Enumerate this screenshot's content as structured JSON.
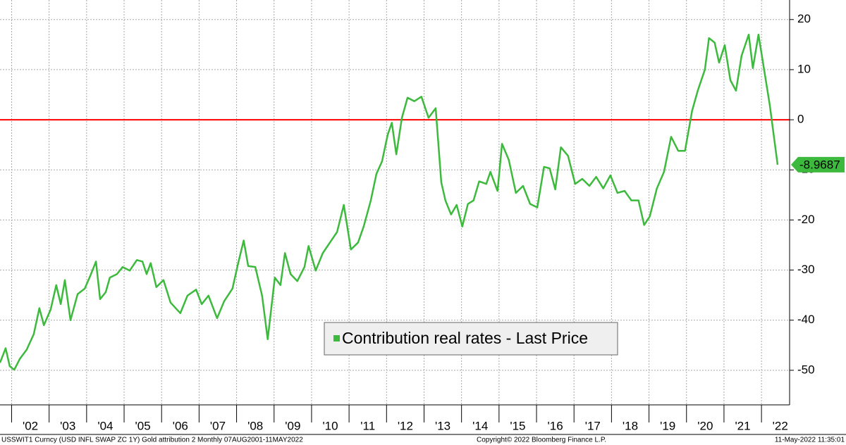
{
  "chart_data": {
    "type": "line",
    "x": [
      2001.69,
      2001.84,
      2001.95,
      2002.07,
      2002.22,
      2002.4,
      2002.59,
      2002.74,
      2002.86,
      2003.04,
      2003.19,
      2003.31,
      2003.42,
      2003.57,
      2003.76,
      2003.95,
      2004.1,
      2004.25,
      2004.36,
      2004.51,
      2004.62,
      2004.81,
      2004.96,
      2005.15,
      2005.34,
      2005.49,
      2005.6,
      2005.71,
      2005.86,
      2006.05,
      2006.24,
      2006.5,
      2006.69,
      2006.92,
      2007.07,
      2007.25,
      2007.48,
      2007.67,
      2007.89,
      2008.04,
      2008.19,
      2008.31,
      2008.5,
      2008.68,
      2008.83,
      2009.02,
      2009.17,
      2009.29,
      2009.44,
      2009.62,
      2009.81,
      2009.92,
      2010.11,
      2010.3,
      2010.49,
      2010.68,
      2010.86,
      2011.05,
      2011.24,
      2011.39,
      2011.58,
      2011.73,
      2011.88,
      2012.03,
      2012.14,
      2012.26,
      2012.41,
      2012.56,
      2012.74,
      2012.93,
      2013.12,
      2013.31,
      2013.46,
      2013.57,
      2013.72,
      2013.87,
      2014.02,
      2014.17,
      2014.32,
      2014.47,
      2014.66,
      2014.77,
      2014.96,
      2015.08,
      2015.26,
      2015.45,
      2015.64,
      2015.83,
      2016.02,
      2016.2,
      2016.35,
      2016.5,
      2016.65,
      2016.84,
      2017.03,
      2017.22,
      2017.41,
      2017.59,
      2017.78,
      2017.97,
      2018.16,
      2018.35,
      2018.53,
      2018.72,
      2018.87,
      2019.02,
      2019.21,
      2019.4,
      2019.59,
      2019.78,
      2019.96,
      2020.15,
      2020.3,
      2020.49,
      2020.6,
      2020.75,
      2020.87,
      2021.02,
      2021.17,
      2021.32,
      2021.47,
      2021.66,
      2021.77,
      2021.92,
      2022.07,
      2022.22,
      2022.43
    ],
    "series": [
      {
        "name": "Contribution real rates - Last Price",
        "color": "#3dba3d",
        "values": [
          -48.5,
          -45.6,
          -49.2,
          -49.9,
          -47.7,
          -45.9,
          -42.8,
          -37.6,
          -41,
          -37.9,
          -33,
          -36.8,
          -32,
          -40,
          -34.8,
          -33.7,
          -31.1,
          -28.3,
          -35.8,
          -34.4,
          -31.5,
          -30.8,
          -29.4,
          -30.1,
          -28,
          -28.3,
          -30.8,
          -28.6,
          -33.4,
          -32,
          -36.5,
          -38.6,
          -35.1,
          -33.9,
          -36.8,
          -35.1,
          -39.6,
          -36.2,
          -33.7,
          -28.7,
          -24.1,
          -29.2,
          -29.4,
          -35.1,
          -43.8,
          -31.5,
          -33,
          -26.6,
          -30.8,
          -32.2,
          -29.4,
          -25.2,
          -30.1,
          -26.6,
          -24.5,
          -22.4,
          -17,
          -25.9,
          -24.5,
          -21.3,
          -16.1,
          -10.8,
          -8.3,
          -3,
          -0.6,
          -6.9,
          0.4,
          4.4,
          3.7,
          4.6,
          0.4,
          2.3,
          -12.5,
          -16.1,
          -18.9,
          -17,
          -21.3,
          -16.8,
          -16.1,
          -12.3,
          -12.8,
          -10.4,
          -14.2,
          -4.8,
          -8,
          -14.6,
          -13.2,
          -16.8,
          -17.5,
          -9.4,
          -9.7,
          -13.9,
          -5.5,
          -7.2,
          -12.8,
          -11.8,
          -13.2,
          -11.4,
          -13.7,
          -11.1,
          -14.6,
          -14.2,
          -16.1,
          -16.1,
          -21,
          -19.3,
          -13.7,
          -10.4,
          -3.4,
          -6.2,
          -6.2,
          1.8,
          5.8,
          10,
          16.3,
          15.4,
          11.4,
          14.9,
          7.9,
          5.8,
          12.8,
          17,
          10.3,
          17,
          10,
          3,
          -8.9687
        ]
      }
    ],
    "xlim": [
      2001.69,
      2022.75
    ],
    "ylim": [
      -56.9,
      23.9
    ],
    "xticks": [
      {
        "value": 2002.5,
        "label": "'02"
      },
      {
        "value": 2003.5,
        "label": "'03"
      },
      {
        "value": 2004.5,
        "label": "'04"
      },
      {
        "value": 2005.5,
        "label": "'05"
      },
      {
        "value": 2006.5,
        "label": "'06"
      },
      {
        "value": 2007.5,
        "label": "'07"
      },
      {
        "value": 2008.5,
        "label": "'08"
      },
      {
        "value": 2009.5,
        "label": "'09"
      },
      {
        "value": 2010.5,
        "label": "'10"
      },
      {
        "value": 2011.5,
        "label": "'11"
      },
      {
        "value": 2012.5,
        "label": "'12"
      },
      {
        "value": 2013.5,
        "label": "'13"
      },
      {
        "value": 2014.5,
        "label": "'14"
      },
      {
        "value": 2015.5,
        "label": "'15"
      },
      {
        "value": 2016.5,
        "label": "'16"
      },
      {
        "value": 2017.5,
        "label": "'17"
      },
      {
        "value": 2018.5,
        "label": "'18"
      },
      {
        "value": 2019.5,
        "label": "'19"
      },
      {
        "value": 2020.5,
        "label": "'20"
      },
      {
        "value": 2021.5,
        "label": "'21"
      },
      {
        "value": 2022.5,
        "label": "'22"
      }
    ],
    "xgrid": [
      2002,
      2003,
      2004,
      2005,
      2006,
      2007,
      2008,
      2009,
      2010,
      2011,
      2012,
      2013,
      2014,
      2015,
      2016,
      2017,
      2018,
      2019,
      2020,
      2021,
      2022
    ],
    "yticks": [
      20,
      10,
      0,
      -10,
      -20,
      -30,
      -40,
      -50
    ],
    "grid": true,
    "reference_line": {
      "value": 0,
      "color": "#ff0000"
    },
    "footer": {
      "left": "USSWIT1 Curncy (USD INFL SWAP ZC 1Y) Gold attribution 2  Monthly 07AUG2001-11MAY2022",
      "center": "Copyright© 2022 Bloomberg Finance L.P.",
      "right": "11-May-2022 11:35:01"
    }
  }
}
